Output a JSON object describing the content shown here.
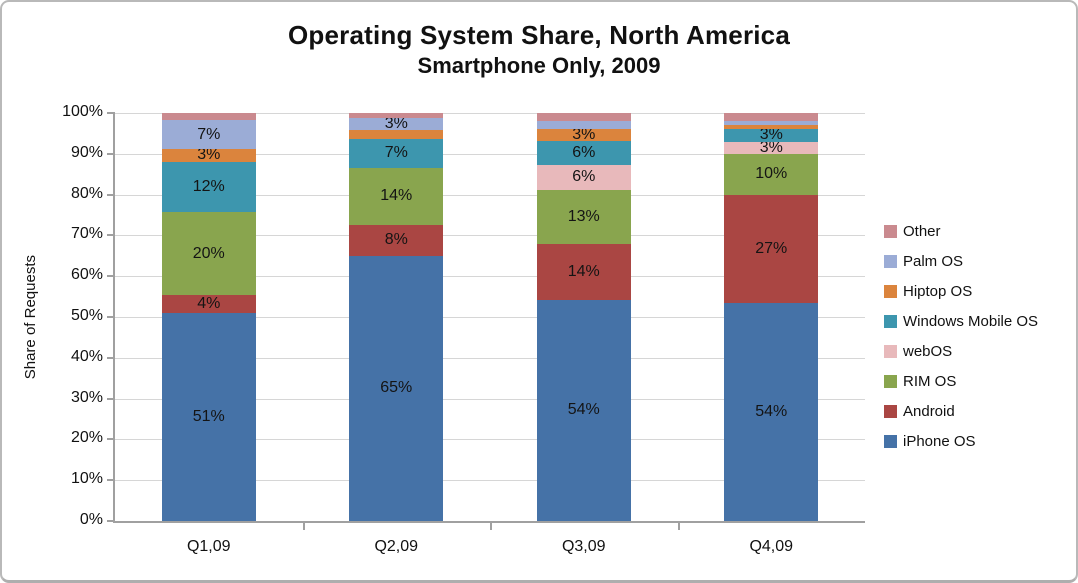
{
  "title": {
    "line1": "Operating System Share, North America",
    "line2": "Smartphone Only, 2009"
  },
  "chart_data": {
    "type": "bar",
    "subtype": "stacked-100",
    "title": "Operating System Share, North America",
    "subtitle": "Smartphone Only, 2009",
    "ylabel": "Share of Requests",
    "xlabel": "",
    "ylim": [
      0,
      100
    ],
    "grid": true,
    "legend_position": "right",
    "categories": [
      "Q1,09",
      "Q2,09",
      "Q3,09",
      "Q4,09"
    ],
    "y_ticks": [
      "0%",
      "10%",
      "20%",
      "30%",
      "40%",
      "50%",
      "60%",
      "70%",
      "80%",
      "90%",
      "100%"
    ],
    "series": [
      {
        "name": "iPhone OS",
        "color": "#4572A7",
        "values": [
          51,
          65,
          54.2,
          53.5
        ],
        "labels": [
          "51%",
          "65%",
          "54%",
          "54%"
        ]
      },
      {
        "name": "Android",
        "color": "#AA4643",
        "values": [
          4.3,
          7.6,
          13.8,
          26.5
        ],
        "labels": [
          "4%",
          "8%",
          "14%",
          "27%"
        ]
      },
      {
        "name": "RIM OS",
        "color": "#89A54E",
        "values": [
          20.4,
          14,
          13.2,
          10
        ],
        "labels": [
          "20%",
          "14%",
          "13%",
          "10%"
        ]
      },
      {
        "name": "webOS",
        "color": "#E8B9BB",
        "values": [
          0,
          0,
          6,
          3
        ],
        "labels": [
          "",
          "",
          "6%",
          "3%"
        ]
      },
      {
        "name": "Windows Mobile OS",
        "color": "#3D96AE",
        "values": [
          12.3,
          7,
          6,
          3
        ],
        "labels": [
          "12%",
          "7%",
          "6%",
          "3%"
        ]
      },
      {
        "name": "Hiptop OS",
        "color": "#DB843D",
        "values": [
          3.2,
          2.2,
          2.8,
          1
        ],
        "labels": [
          "3%",
          "",
          "3%",
          ""
        ]
      },
      {
        "name": "Palm OS",
        "color": "#9BACD6",
        "values": [
          7,
          2.9,
          2,
          1
        ],
        "labels": [
          "7%",
          "3%",
          "",
          ""
        ]
      },
      {
        "name": "Other",
        "color": "#CA8A8F",
        "values": [
          1.8,
          1.3,
          2,
          2
        ],
        "labels": [
          "",
          "",
          "",
          ""
        ]
      }
    ],
    "grid_color": "#d6d6d6",
    "axis_color": "#a0a0a0"
  }
}
